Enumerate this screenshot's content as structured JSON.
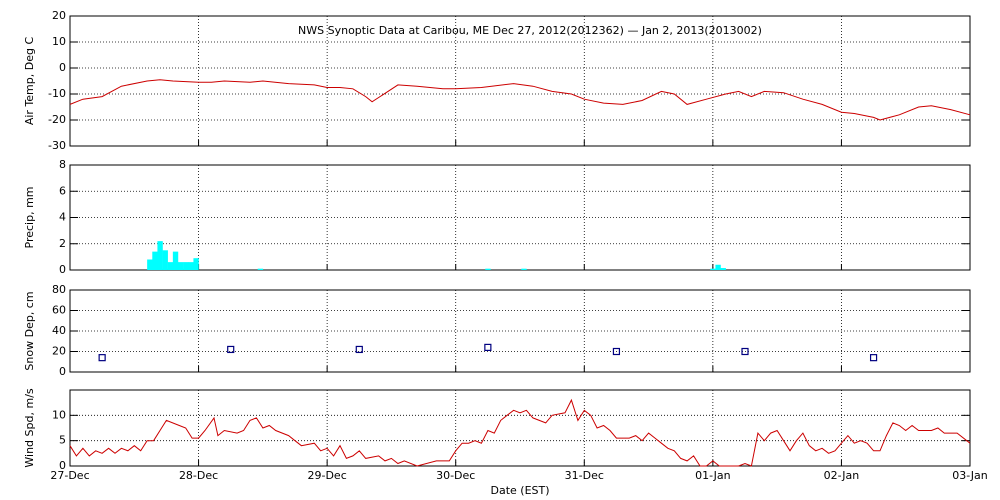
{
  "chart_data": [
    {
      "type": "line",
      "title": "NWS Synoptic Data at Caribou, ME   Dec 27, 2012(2012362) — Jan  2, 2013(2013002)",
      "ylabel": "Air Temp, Deg C",
      "ylim": [
        -30,
        20
      ],
      "yticks": [
        -30,
        -20,
        -10,
        0,
        10,
        20
      ],
      "grid": true,
      "series": [
        {
          "color": "#cc0000",
          "x": [
            0,
            0.1,
            0.25,
            0.4,
            0.6,
            0.7,
            0.8,
            1.0,
            1.1,
            1.2,
            1.4,
            1.5,
            1.7,
            1.9,
            2.0,
            2.1,
            2.2,
            2.3,
            2.35,
            2.55,
            2.7,
            2.9,
            3.0,
            3.2,
            3.45,
            3.6,
            3.75,
            3.9,
            4.0,
            4.15,
            4.3,
            4.45,
            4.6,
            4.7,
            4.8,
            4.95,
            5.1,
            5.2,
            5.3,
            5.4,
            5.55,
            5.7,
            5.85,
            6.0,
            6.1,
            6.25,
            6.3,
            6.45,
            6.6,
            6.7,
            6.85,
            7.0
          ],
          "values": [
            -14,
            -12,
            -11,
            -7,
            -5,
            -4.5,
            -5,
            -5.5,
            -5.5,
            -5,
            -5.5,
            -5,
            -6,
            -6.5,
            -7.5,
            -7.5,
            -8,
            -11,
            -13,
            -6.5,
            -7,
            -8,
            -8,
            -7.5,
            -6,
            -7,
            -9,
            -10,
            -12,
            -13.5,
            -14,
            -12.5,
            -9,
            -10,
            -14,
            -12,
            -10,
            -9,
            -11,
            -9,
            -9.5,
            -12,
            -14,
            -17,
            -17.5,
            -19,
            -20,
            -18,
            -15,
            -14.5,
            -16,
            -18
          ]
        }
      ]
    },
    {
      "type": "bar",
      "ylabel": "Precip, mm",
      "ylim": [
        0,
        8
      ],
      "yticks": [
        0,
        2,
        4,
        6,
        8
      ],
      "grid": true,
      "series": [
        {
          "color": "#00ffff",
          "x": [
            0.6,
            0.64,
            0.68,
            0.72,
            0.76,
            0.8,
            0.84,
            0.88,
            0.92,
            0.96,
            1.46,
            3.23,
            3.51,
            4.98,
            5.02,
            5.06
          ],
          "values": [
            0.8,
            1.4,
            2.2,
            1.5,
            0.6,
            1.4,
            0.6,
            0.6,
            0.6,
            0.9,
            0.1,
            0.1,
            0.1,
            0.1,
            0.4,
            0.15
          ]
        }
      ]
    },
    {
      "type": "scatter",
      "ylabel": "Snow Dep, cm",
      "ylim": [
        0,
        80
      ],
      "yticks": [
        0,
        20,
        40,
        60,
        80
      ],
      "grid": true,
      "series": [
        {
          "color": "#000080",
          "x": [
            0.25,
            1.25,
            2.25,
            3.25,
            4.25,
            5.25,
            6.25
          ],
          "values": [
            14,
            22,
            22,
            24,
            20,
            20,
            14
          ]
        }
      ]
    },
    {
      "type": "line",
      "ylabel": "Wind Spd, m/s",
      "xlabel": "Date (EST)",
      "ylim": [
        0,
        15
      ],
      "yticks": [
        0,
        5,
        10
      ],
      "grid": true,
      "xlim": [
        0,
        7
      ],
      "xticks": [
        {
          "value": 0,
          "label": "27-Dec"
        },
        {
          "value": 1,
          "label": "28-Dec"
        },
        {
          "value": 2,
          "label": "29-Dec"
        },
        {
          "value": 3,
          "label": "30-Dec"
        },
        {
          "value": 4,
          "label": "31-Dec"
        },
        {
          "value": 5,
          "label": "01-Jan"
        },
        {
          "value": 6,
          "label": "02-Jan"
        },
        {
          "value": 7,
          "label": "03-Jan"
        }
      ],
      "series": [
        {
          "color": "#cc0000",
          "x": [
            0,
            0.05,
            0.1,
            0.15,
            0.2,
            0.25,
            0.3,
            0.35,
            0.4,
            0.45,
            0.5,
            0.55,
            0.6,
            0.65,
            0.7,
            0.75,
            0.85,
            0.9,
            0.95,
            1.0,
            1.05,
            1.12,
            1.15,
            1.2,
            1.3,
            1.35,
            1.4,
            1.45,
            1.5,
            1.55,
            1.6,
            1.7,
            1.75,
            1.8,
            1.9,
            1.95,
            2.0,
            2.05,
            2.1,
            2.15,
            2.2,
            2.25,
            2.3,
            2.4,
            2.45,
            2.5,
            2.55,
            2.6,
            2.7,
            2.85,
            2.95,
            3.0,
            3.05,
            3.1,
            3.15,
            3.2,
            3.25,
            3.3,
            3.35,
            3.4,
            3.45,
            3.5,
            3.55,
            3.6,
            3.7,
            3.75,
            3.85,
            3.9,
            3.95,
            4.0,
            4.05,
            4.1,
            4.15,
            4.2,
            4.25,
            4.35,
            4.4,
            4.45,
            4.5,
            4.55,
            4.6,
            4.65,
            4.7,
            4.75,
            4.8,
            4.85,
            4.9,
            4.95,
            5.0,
            5.05,
            5.1,
            5.15,
            5.2,
            5.25,
            5.3,
            5.35,
            5.4,
            5.45,
            5.5,
            5.55,
            5.6,
            5.65,
            5.7,
            5.75,
            5.8,
            5.85,
            5.9,
            5.95,
            6.0,
            6.05,
            6.1,
            6.15,
            6.2,
            6.25,
            6.3,
            6.35,
            6.4,
            6.45,
            6.5,
            6.55,
            6.6,
            6.7,
            6.75,
            6.8,
            6.9,
            7.0
          ],
          "values": [
            4,
            2,
            3.5,
            2,
            3,
            2.5,
            3.5,
            2.5,
            3.5,
            3,
            4,
            3,
            5,
            5,
            7,
            9,
            8,
            7.5,
            5.5,
            5.5,
            7,
            9.5,
            6,
            7,
            6.5,
            7,
            9,
            9.5,
            7.5,
            8,
            7,
            6,
            5,
            4,
            4.5,
            3,
            3.5,
            2,
            4,
            1.5,
            2,
            3,
            1.5,
            2,
            1,
            1.5,
            0.5,
            1,
            0,
            1,
            1,
            3,
            4.5,
            4.5,
            5,
            4.5,
            7,
            6.5,
            9,
            10,
            11,
            10.5,
            11,
            9.5,
            8.5,
            10,
            10.5,
            13,
            9,
            11,
            10,
            7.5,
            8,
            7,
            5.5,
            5.5,
            6,
            5,
            6.5,
            5.5,
            4.5,
            3.5,
            3,
            1.5,
            1,
            2,
            0,
            0,
            1,
            0,
            0,
            0,
            0,
            0.5,
            0,
            6.5,
            5,
            6.5,
            7,
            5,
            3,
            5,
            6.5,
            4,
            3,
            3.5,
            2.5,
            3,
            4.5,
            6,
            4.5,
            5,
            4.5,
            3,
            3,
            6,
            8.5,
            8,
            7,
            8,
            7,
            7,
            7.5,
            6.5,
            6.5,
            4.5
          ]
        }
      ]
    }
  ]
}
